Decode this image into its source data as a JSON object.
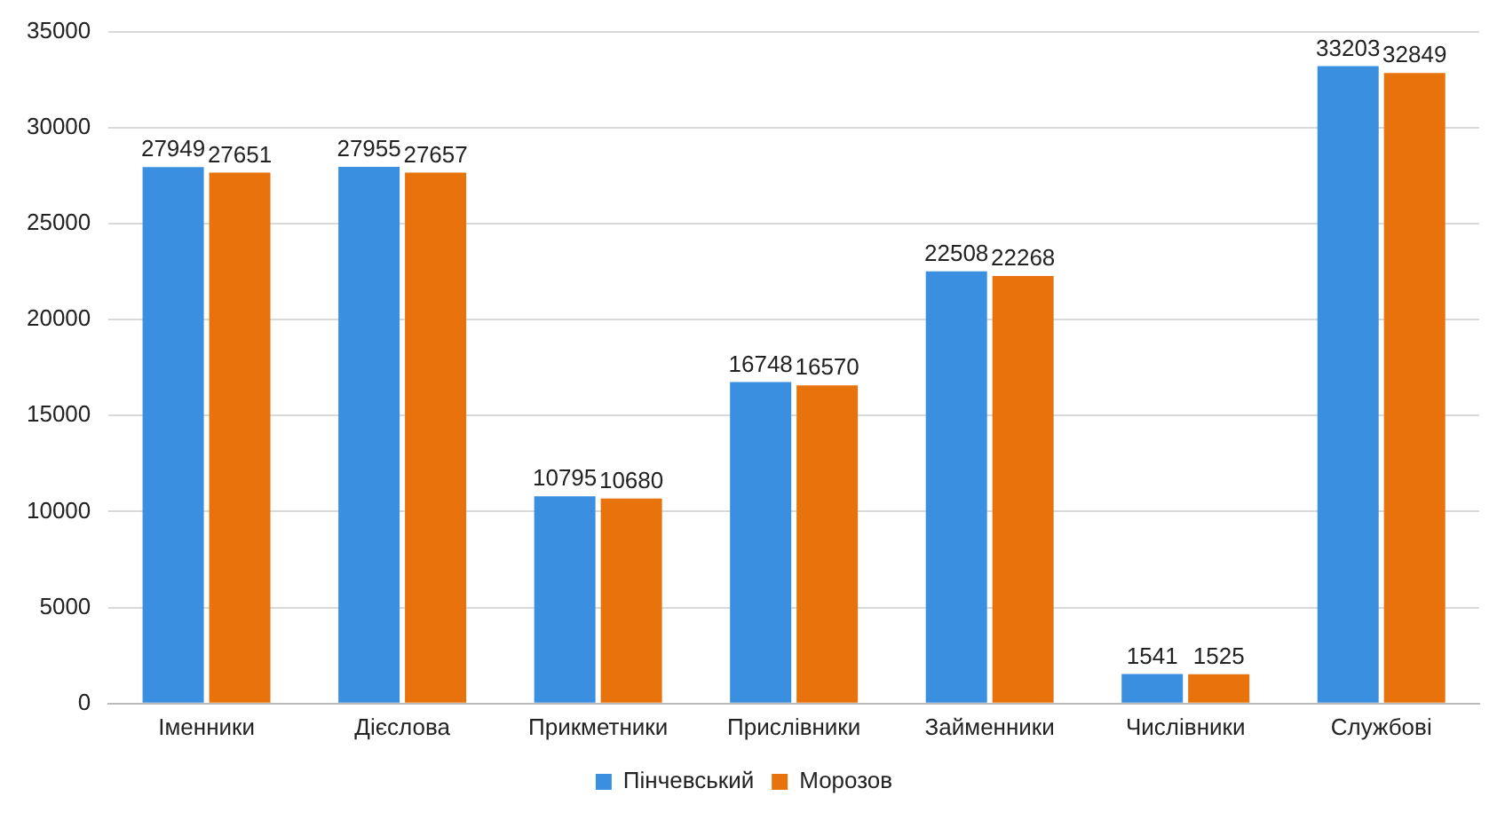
{
  "chart_data": {
    "type": "bar",
    "categories": [
      "Іменники",
      "Дієслова",
      "Прикметники",
      "Прислівники",
      "Займенники",
      "Числівники",
      "Службові"
    ],
    "series": [
      {
        "name": "Пінчевський",
        "color": "#3b8fe0",
        "values": [
          27949,
          27955,
          10795,
          16748,
          22508,
          1541,
          33203
        ]
      },
      {
        "name": "Морозов",
        "color": "#e8720c",
        "values": [
          27651,
          27657,
          10680,
          16570,
          22268,
          1525,
          32849
        ]
      }
    ],
    "ylim": [
      0,
      35000
    ],
    "yticks": [
      0,
      5000,
      10000,
      15000,
      20000,
      25000,
      30000,
      35000
    ],
    "grid": "y",
    "legend": "bottom",
    "data_labels": true
  }
}
